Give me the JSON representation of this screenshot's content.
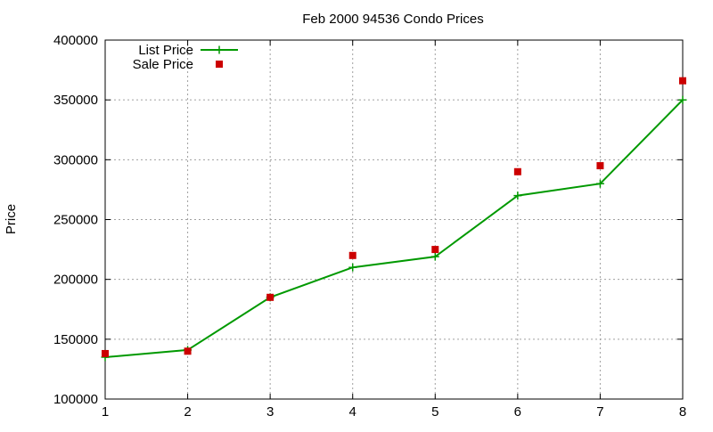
{
  "chart_data": {
    "type": "line",
    "title": "Feb 2000 94536 Condo Prices",
    "xlabel": "",
    "ylabel": "Price",
    "x": [
      1,
      2,
      3,
      4,
      5,
      6,
      7,
      8
    ],
    "xlim": [
      1,
      8
    ],
    "ylim": [
      100000,
      400000
    ],
    "xticks": [
      1,
      2,
      3,
      4,
      5,
      6,
      7,
      8
    ],
    "yticks": [
      100000,
      150000,
      200000,
      250000,
      300000,
      350000,
      400000
    ],
    "grid": true,
    "legend_position": "top-left",
    "series": [
      {
        "name": "List Price",
        "style": "line+cross",
        "color": "#009900",
        "values": [
          135000,
          141000,
          185000,
          210000,
          219000,
          270000,
          280000,
          350000
        ]
      },
      {
        "name": "Sale Price",
        "style": "square-points",
        "color": "#cc0000",
        "values": [
          138000,
          140000,
          185000,
          220000,
          225000,
          290000,
          295000,
          366000
        ]
      }
    ]
  }
}
